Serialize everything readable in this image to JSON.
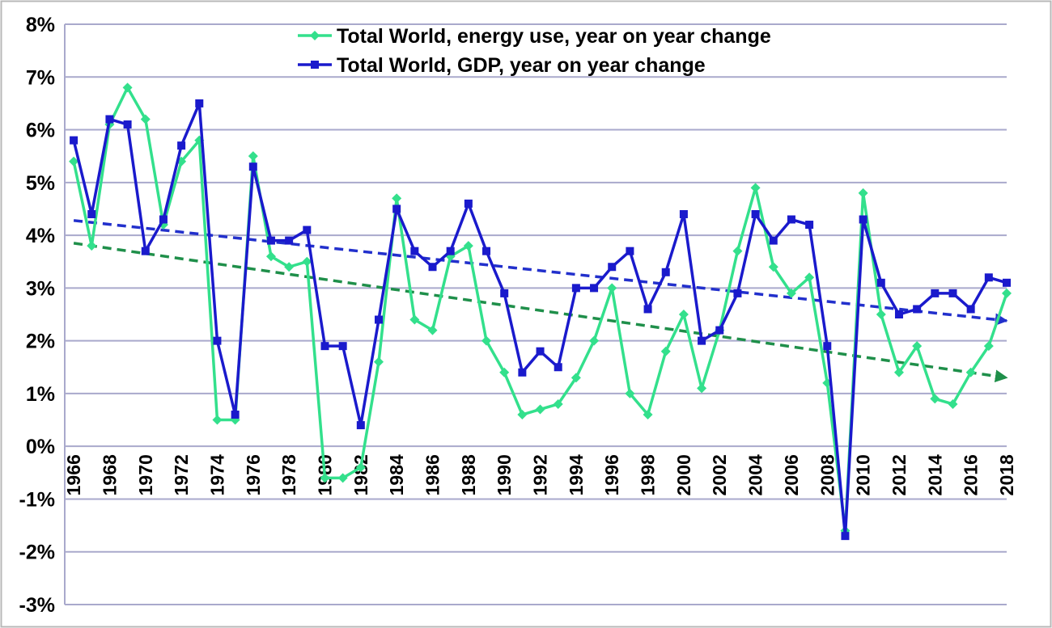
{
  "chart_data": {
    "type": "line",
    "title": "",
    "xlabel": "",
    "ylabel": "",
    "ylim": [
      -3,
      8
    ],
    "y_ticks": [
      -3,
      -2,
      -1,
      0,
      1,
      2,
      3,
      4,
      5,
      6,
      7,
      8
    ],
    "y_tick_labels": [
      "-3%",
      "-2%",
      "-1%",
      "0%",
      "1%",
      "2%",
      "3%",
      "4%",
      "5%",
      "6%",
      "7%",
      "8%"
    ],
    "x_tick_labels": [
      "1966",
      "1968",
      "1970",
      "1972",
      "1974",
      "1976",
      "1978",
      "1980",
      "1982",
      "1984",
      "1986",
      "1988",
      "1990",
      "1992",
      "1994",
      "1996",
      "1998",
      "2000",
      "2002",
      "2004",
      "2006",
      "2008",
      "2010",
      "2012",
      "2014",
      "2016",
      "2018"
    ],
    "grid": true,
    "legend_position": "top",
    "colors": {
      "energy": "#33e08c",
      "gdp": "#1a1acc",
      "energy_trend": "#1f8f4a",
      "gdp_trend": "#2230cc",
      "grid": "#a9a9cc",
      "frame": "#b8b8b8"
    },
    "x": [
      1966,
      1967,
      1968,
      1969,
      1970,
      1971,
      1972,
      1973,
      1974,
      1975,
      1976,
      1977,
      1978,
      1979,
      1980,
      1981,
      1982,
      1983,
      1984,
      1985,
      1986,
      1987,
      1988,
      1989,
      1990,
      1991,
      1992,
      1993,
      1994,
      1995,
      1996,
      1997,
      1998,
      1999,
      2000,
      2001,
      2002,
      2003,
      2004,
      2005,
      2006,
      2007,
      2008,
      2009,
      2010,
      2011,
      2012,
      2013,
      2014,
      2015,
      2016,
      2017,
      2018
    ],
    "series": [
      {
        "name": "Total World, energy use, year on year change",
        "values": [
          5.4,
          3.8,
          6.1,
          6.8,
          6.2,
          4.2,
          5.4,
          5.8,
          0.5,
          0.5,
          5.5,
          3.6,
          3.4,
          3.5,
          -0.6,
          -0.6,
          -0.4,
          1.6,
          4.7,
          2.4,
          2.2,
          3.6,
          3.8,
          2.0,
          1.4,
          0.6,
          0.7,
          0.8,
          1.3,
          2.0,
          3.0,
          1.0,
          0.6,
          1.8,
          2.5,
          1.1,
          2.2,
          3.7,
          4.9,
          3.4,
          2.9,
          3.2,
          1.2,
          -1.6,
          4.8,
          2.5,
          1.4,
          1.9,
          0.9,
          0.8,
          1.4,
          1.9,
          2.9
        ]
      },
      {
        "name": "Total World, GDP, year on year change",
        "values": [
          5.8,
          4.4,
          6.2,
          6.1,
          3.7,
          4.3,
          5.7,
          6.5,
          2.0,
          0.6,
          5.3,
          3.9,
          3.9,
          4.1,
          1.9,
          1.9,
          0.4,
          2.4,
          4.5,
          3.7,
          3.4,
          3.7,
          4.6,
          3.7,
          2.9,
          1.4,
          1.8,
          1.5,
          3.0,
          3.0,
          3.4,
          3.7,
          2.6,
          3.3,
          4.4,
          2.0,
          2.2,
          2.9,
          4.4,
          3.9,
          4.3,
          4.2,
          1.9,
          -1.7,
          4.3,
          3.1,
          2.5,
          2.6,
          2.9,
          2.9,
          2.6,
          3.2,
          3.1
        ]
      }
    ],
    "trendlines": [
      {
        "series": "Total World, energy use, year on year change",
        "start": [
          1966,
          3.85
        ],
        "end": [
          2018,
          1.3
        ]
      },
      {
        "series": "Total World, GDP, year on year change",
        "start": [
          1966,
          4.28
        ],
        "end": [
          2018,
          2.38
        ]
      }
    ]
  }
}
